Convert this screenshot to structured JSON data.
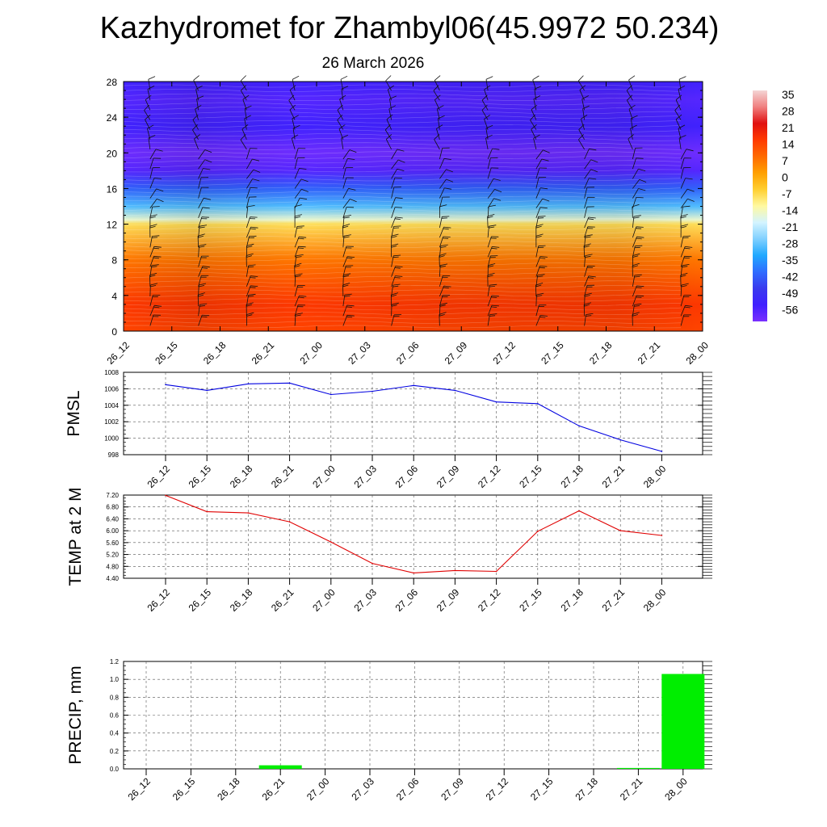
{
  "title": "Kazhydromet for Zhambyl06(45.9972 50.234)",
  "subtitle": "26 March 2026",
  "colors": {
    "pmsl_line": "#0000e0",
    "temp_line": "#e00000",
    "precip_bar": "#00ee00"
  },
  "chart_data": [
    {
      "type": "heatmap",
      "title": "",
      "x_ticks": [
        "26_12",
        "26_15",
        "26_18",
        "26_21",
        "27_00",
        "27_03",
        "27_06",
        "27_09",
        "27_12",
        "27_15",
        "27_18",
        "27_21",
        "28_00"
      ],
      "y_ticks": [
        0,
        4,
        8,
        12,
        16,
        20,
        24,
        28
      ],
      "ylim": [
        0,
        28
      ],
      "colorbar": {
        "labels": [
          35,
          28,
          21,
          14,
          7,
          0,
          -7,
          -14,
          -21,
          -28,
          -35,
          -42,
          -49,
          -56
        ],
        "colors": [
          "#f4d4d4",
          "#f08080",
          "#e01010",
          "#ff3a00",
          "#ff6a00",
          "#ffa000",
          "#ffcf30",
          "#fff9a0",
          "#d4f4ff",
          "#80d0ff",
          "#20a8ff",
          "#2f6cff",
          "#3a3aee",
          "#4020ff",
          "#7a30ff"
        ]
      },
      "temperature_profile": [
        {
          "level": 0,
          "value": 16
        },
        {
          "level": 3,
          "value": 18
        },
        {
          "level": 8,
          "value": 9
        },
        {
          "level": 12,
          "value": -6
        },
        {
          "level": 12.5,
          "value": -14
        },
        {
          "level": 14,
          "value": -28
        },
        {
          "level": 16,
          "value": -40
        },
        {
          "level": 18,
          "value": -55
        },
        {
          "level": 20,
          "value": -58
        },
        {
          "level": 23,
          "value": -52
        },
        {
          "level": 26,
          "value": -55
        },
        {
          "level": 28,
          "value": -52
        }
      ],
      "wind_barbs": true
    },
    {
      "type": "line",
      "ylabel": "PMSL",
      "categories": [
        "26_12",
        "26_15",
        "26_18",
        "26_21",
        "27_00",
        "27_03",
        "27_06",
        "27_09",
        "27_12",
        "27_15",
        "27_18",
        "27_21",
        "28_00"
      ],
      "values": [
        1006.5,
        1005.8,
        1006.6,
        1006.7,
        1005.3,
        1005.7,
        1006.4,
        1005.8,
        1004.4,
        1004.2,
        1001.5,
        999.8,
        998.4
      ],
      "ylim": [
        998,
        1008
      ],
      "y_ticks": [
        998,
        1000,
        1002,
        1004,
        1006,
        1008
      ],
      "grid": true
    },
    {
      "type": "line",
      "ylabel": "TEMP at 2 M",
      "categories": [
        "26_12",
        "26_15",
        "26_18",
        "26_21",
        "27_00",
        "27_03",
        "27_06",
        "27_09",
        "27_12",
        "27_15",
        "27_18",
        "27_21",
        "28_00"
      ],
      "values": [
        7.19,
        6.64,
        6.6,
        6.3,
        5.62,
        4.9,
        4.58,
        4.66,
        4.63,
        5.98,
        6.67,
        6.0,
        5.84
      ],
      "ylim": [
        4.4,
        7.2
      ],
      "y_ticks": [
        "4.40",
        "4.80",
        "5.20",
        "5.60",
        "6.00",
        "6.40",
        "6.80",
        "7.20"
      ],
      "grid": true
    },
    {
      "type": "bar",
      "ylabel": "PRECIP, mm",
      "categories": [
        "26_12",
        "26_15",
        "26_18",
        "26_21",
        "27_00",
        "27_03",
        "27_06",
        "27_09",
        "27_12",
        "27_15",
        "27_18",
        "27_21",
        "28_00"
      ],
      "values": [
        0,
        0,
        0,
        0.04,
        0,
        0,
        0,
        0,
        0,
        0,
        0,
        0.01,
        1.06
      ],
      "ylim": [
        0,
        1.2
      ],
      "y_ticks": [
        "0.0",
        "0.2",
        "0.4",
        "0.6",
        "0.8",
        "1.0",
        "1.2"
      ],
      "grid": true
    }
  ]
}
